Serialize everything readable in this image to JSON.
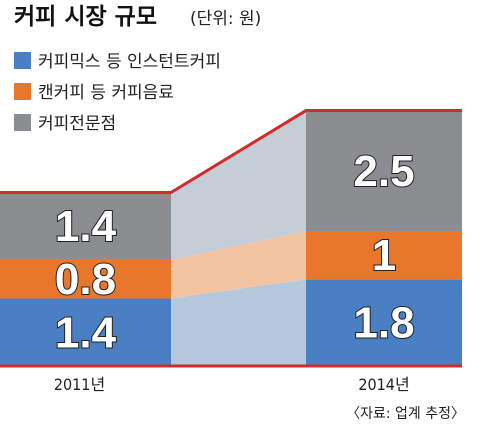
{
  "chart_data": {
    "type": "bar",
    "title": "커피 시장 규모",
    "unit": "(단위: 원)",
    "categories": [
      "2011년",
      "2014년"
    ],
    "series": [
      {
        "name": "커피믹스 등 인스턴트커피",
        "values": [
          1.4,
          1.8
        ],
        "labels": [
          "1.4",
          "1.8"
        ],
        "color": "#4a7fc3"
      },
      {
        "name": "캔커피 등 커피음료",
        "values": [
          0.8,
          1.0
        ],
        "labels": [
          "0.8",
          "1"
        ],
        "color": "#e8762b"
      },
      {
        "name": "커피전문점",
        "values": [
          1.4,
          2.5
        ],
        "labels": [
          "1.4",
          "2.5"
        ],
        "color": "#8c8d90"
      }
    ],
    "stacked": true,
    "source": "〈자료: 업계 추정〉",
    "colors": {
      "outline": "#d32b2b",
      "connector_blue": "#b5c8dc",
      "connector_orange": "#f2c4a2",
      "connector_gray": "#c5cdd6"
    }
  }
}
